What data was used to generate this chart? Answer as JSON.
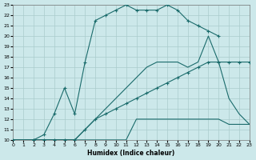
{
  "xlabel": "Humidex (Indice chaleur)",
  "bg_color": "#cce8ea",
  "grid_color": "#aacccc",
  "line_color": "#1a6b6b",
  "xlim": [
    0,
    23
  ],
  "ylim": [
    10,
    23
  ],
  "xticks": [
    0,
    1,
    2,
    3,
    4,
    5,
    6,
    7,
    8,
    9,
    10,
    11,
    12,
    13,
    14,
    15,
    16,
    17,
    18,
    19,
    20,
    21,
    22,
    23
  ],
  "yticks": [
    10,
    11,
    12,
    13,
    14,
    15,
    16,
    17,
    18,
    19,
    20,
    21,
    22,
    23
  ],
  "curve1_x": [
    0,
    1,
    2,
    3,
    4,
    5,
    6,
    7,
    8,
    9,
    10,
    11,
    12,
    13,
    14,
    15,
    16,
    17,
    18,
    19,
    20,
    21,
    22,
    23
  ],
  "curve1_y": [
    10,
    10,
    10,
    10,
    10,
    10,
    10,
    10,
    10,
    10,
    10,
    10,
    12,
    12,
    12,
    12,
    12,
    12,
    12,
    12,
    12,
    11.5,
    11.5,
    11.5
  ],
  "curve2_x": [
    0,
    2,
    3,
    4,
    5,
    6,
    7,
    8,
    9,
    10,
    11,
    12,
    13,
    14,
    15,
    16,
    17,
    18,
    19,
    20,
    21,
    22,
    23
  ],
  "curve2_y": [
    10,
    10,
    10,
    10,
    10,
    10,
    11,
    12,
    13,
    14,
    15,
    16,
    17,
    17.5,
    17.5,
    17.5,
    17,
    17.5,
    20,
    17.5,
    14,
    12.5,
    11.5
  ],
  "curve3_x": [
    2,
    3,
    4,
    5,
    6,
    7,
    8,
    9,
    10,
    11,
    12,
    13,
    14,
    15,
    16,
    17,
    18,
    19,
    20
  ],
  "curve3_y": [
    10,
    10.5,
    12.5,
    15,
    12.5,
    17.5,
    21.5,
    22,
    22.5,
    23,
    22.5,
    22.5,
    22.5,
    23,
    22.5,
    21.5,
    21,
    20.5,
    20
  ],
  "curve4_x": [
    0,
    2,
    3,
    4,
    5,
    6,
    7,
    8,
    9,
    10,
    11,
    12,
    13,
    14,
    15,
    16,
    17,
    18,
    19,
    20,
    21,
    22,
    23
  ],
  "curve4_y": [
    10,
    10,
    10,
    10,
    10,
    10,
    11,
    12,
    12.5,
    13,
    13.5,
    14,
    14.5,
    15,
    15.5,
    16,
    16.5,
    17,
    17.5,
    17.5,
    17.5,
    17.5,
    17.5
  ]
}
